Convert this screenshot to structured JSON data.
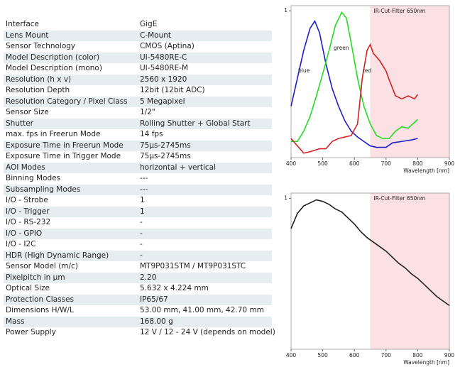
{
  "table": {
    "rows": [
      [
        "Interface",
        "GigE"
      ],
      [
        "Lens Mount",
        "C-Mount"
      ],
      [
        "Sensor Technology",
        "CMOS (Aptina)"
      ],
      [
        "Model Description (color)",
        "UI-5480RE-C"
      ],
      [
        "Model Description (mono)",
        "UI-5480RE-M"
      ],
      [
        "Resolution (h x v)",
        "2560 x 1920"
      ],
      [
        "Resolution Depth",
        "12bit (12bit ADC)"
      ],
      [
        "Resolution Category / Pixel Class",
        "5 Megapixel"
      ],
      [
        "Sensor Size",
        "1/2\""
      ],
      [
        "Shutter",
        "Rolling Shutter + Global Start"
      ],
      [
        "max. fps in Freerun Mode",
        "14 fps"
      ],
      [
        "Exposure Time in Freerun Mode",
        "75µs-2745ms"
      ],
      [
        "Exposure Time in Trigger Mode",
        "75µs-2745ms"
      ],
      [
        "AOI Modes",
        "horizontal + vertical"
      ],
      [
        "Binning Modes",
        "---"
      ],
      [
        "Subsampling Modes",
        "---"
      ],
      [
        "I/O - Strobe",
        "1"
      ],
      [
        "I/O - Trigger",
        "1"
      ],
      [
        "I/O - RS-232",
        "-"
      ],
      [
        "I/O - GPIO",
        "-"
      ],
      [
        "I/O - I2C",
        "-"
      ],
      [
        "HDR (High Dynamic Range)",
        "-"
      ],
      [
        "Sensor Model (m/c)",
        "MT9P031STM / MT9P031STC"
      ],
      [
        "Pixelpitch in µm",
        "2.20"
      ],
      [
        "Optical Size",
        "5.632 x 4.224 mm"
      ],
      [
        "Protection Classes",
        "IP65/67"
      ],
      [
        "Dimensions H/W/L",
        "53.00 mm, 41.00 mm, 42.70 mm"
      ],
      [
        "Mass",
        "168.00 g"
      ],
      [
        "Power Supply",
        "12 V / 12 - 24 V (depends on model)"
      ]
    ]
  },
  "chart_data": [
    {
      "type": "line",
      "annotation": "IR-Cut-Filter 650nm",
      "highlight": [
        650,
        900
      ],
      "xlabel": "Wavelength [nm]",
      "xlim": [
        400,
        900
      ],
      "ylim": [
        0,
        1.035
      ],
      "xticks": [
        400,
        500,
        600,
        700,
        800,
        900
      ],
      "yticks": [
        1
      ],
      "series": [
        {
          "name": "blue",
          "color": "#1c1cc8",
          "x": [
            400,
            420,
            440,
            460,
            475,
            490,
            510,
            530,
            550,
            570,
            590,
            610,
            630,
            650,
            670,
            700,
            720,
            750,
            780,
            800
          ],
          "values": [
            0.35,
            0.54,
            0.73,
            0.88,
            0.93,
            0.85,
            0.64,
            0.47,
            0.35,
            0.25,
            0.18,
            0.14,
            0.11,
            0.08,
            0.07,
            0.07,
            0.1,
            0.11,
            0.12,
            0.13
          ]
        },
        {
          "name": "green",
          "color": "#22dd22",
          "x": [
            400,
            420,
            440,
            460,
            480,
            500,
            520,
            540,
            560,
            575,
            590,
            610,
            630,
            650,
            670,
            690,
            710,
            730,
            750,
            770,
            790,
            800
          ],
          "values": [
            0.11,
            0.11,
            0.18,
            0.28,
            0.42,
            0.57,
            0.73,
            0.9,
            0.99,
            0.95,
            0.78,
            0.54,
            0.35,
            0.23,
            0.15,
            0.13,
            0.13,
            0.18,
            0.21,
            0.2,
            0.24,
            0.26
          ]
        },
        {
          "name": "red",
          "color": "#d02222",
          "x": [
            400,
            420,
            440,
            460,
            490,
            510,
            530,
            550,
            570,
            590,
            610,
            625,
            640,
            650,
            660,
            680,
            700,
            710,
            730,
            750,
            770,
            790,
            800
          ],
          "values": [
            0.13,
            0.08,
            0.03,
            0.04,
            0.06,
            0.06,
            0.11,
            0.13,
            0.14,
            0.15,
            0.23,
            0.54,
            0.73,
            0.77,
            0.71,
            0.66,
            0.59,
            0.53,
            0.42,
            0.4,
            0.42,
            0.4,
            0.43
          ]
        }
      ]
    },
    {
      "type": "line",
      "annotation": "IR-Cut-Filter 650nm",
      "highlight": [
        650,
        900
      ],
      "xlabel": "Wavelength [nm]",
      "xlim": [
        400,
        900
      ],
      "ylim": [
        0,
        1.035
      ],
      "xticks": [
        400,
        500,
        600,
        700,
        800,
        900
      ],
      "yticks": [
        1
      ],
      "series": [
        {
          "color": "#222222",
          "x": [
            400,
            420,
            440,
            460,
            480,
            500,
            520,
            540,
            560,
            580,
            600,
            620,
            640,
            660,
            680,
            700,
            720,
            740,
            760,
            780,
            800,
            820,
            840,
            860,
            880,
            900
          ],
          "values": [
            0.8,
            0.9,
            0.95,
            0.97,
            0.99,
            0.98,
            0.96,
            0.93,
            0.91,
            0.87,
            0.83,
            0.78,
            0.74,
            0.71,
            0.68,
            0.65,
            0.61,
            0.57,
            0.54,
            0.5,
            0.47,
            0.43,
            0.39,
            0.35,
            0.32,
            0.29
          ]
        }
      ]
    }
  ]
}
